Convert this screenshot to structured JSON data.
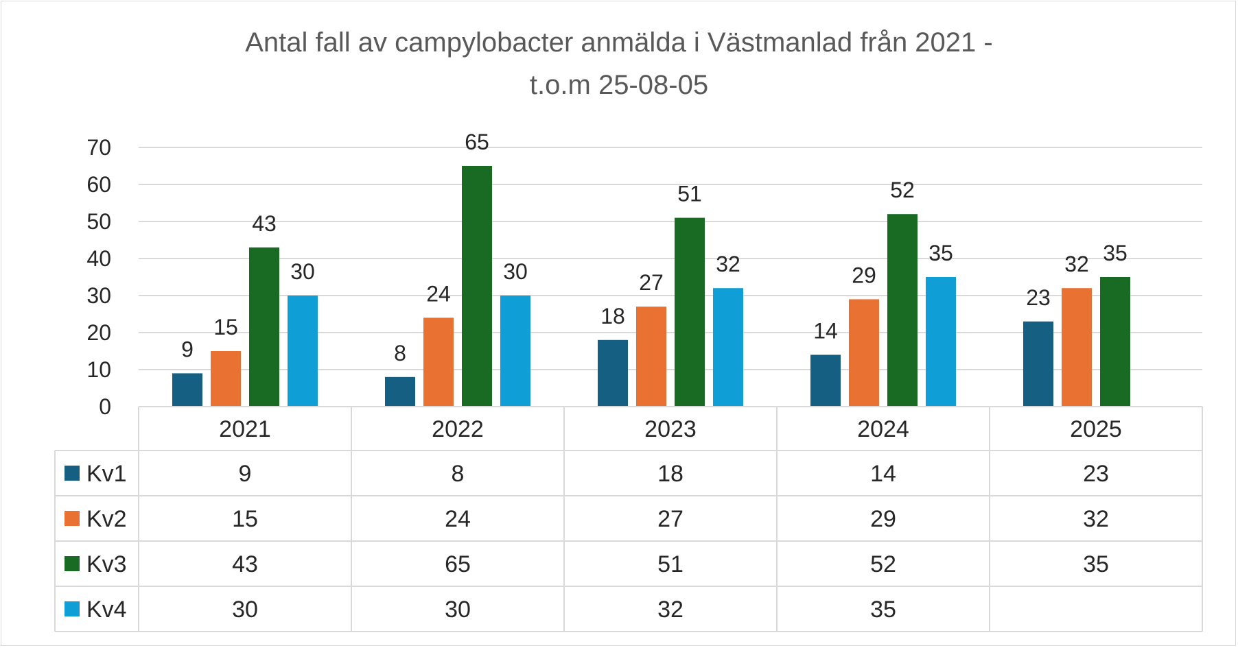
{
  "chart_data": {
    "type": "bar",
    "title_line1": "Antal fall av campylobacter anmälda i Västmanlad från 2021 -",
    "title_line2": "t.o.m 25-08-05",
    "categories": [
      "2021",
      "2022",
      "2023",
      "2024",
      "2025"
    ],
    "series": [
      {
        "name": "Kv1",
        "color": "#156082",
        "values": [
          9,
          8,
          18,
          14,
          23
        ]
      },
      {
        "name": "Kv2",
        "color": "#e97132",
        "values": [
          15,
          24,
          27,
          29,
          32
        ]
      },
      {
        "name": "Kv3",
        "color": "#196b24",
        "values": [
          43,
          65,
          51,
          52,
          35
        ]
      },
      {
        "name": "Kv4",
        "color": "#0f9ed5",
        "values": [
          30,
          30,
          32,
          35,
          null
        ]
      }
    ],
    "yticks": [
      "0",
      "10",
      "20",
      "30",
      "40",
      "50",
      "60",
      "70"
    ],
    "ylim": [
      0,
      70
    ],
    "grid": true,
    "legend": "data table"
  }
}
